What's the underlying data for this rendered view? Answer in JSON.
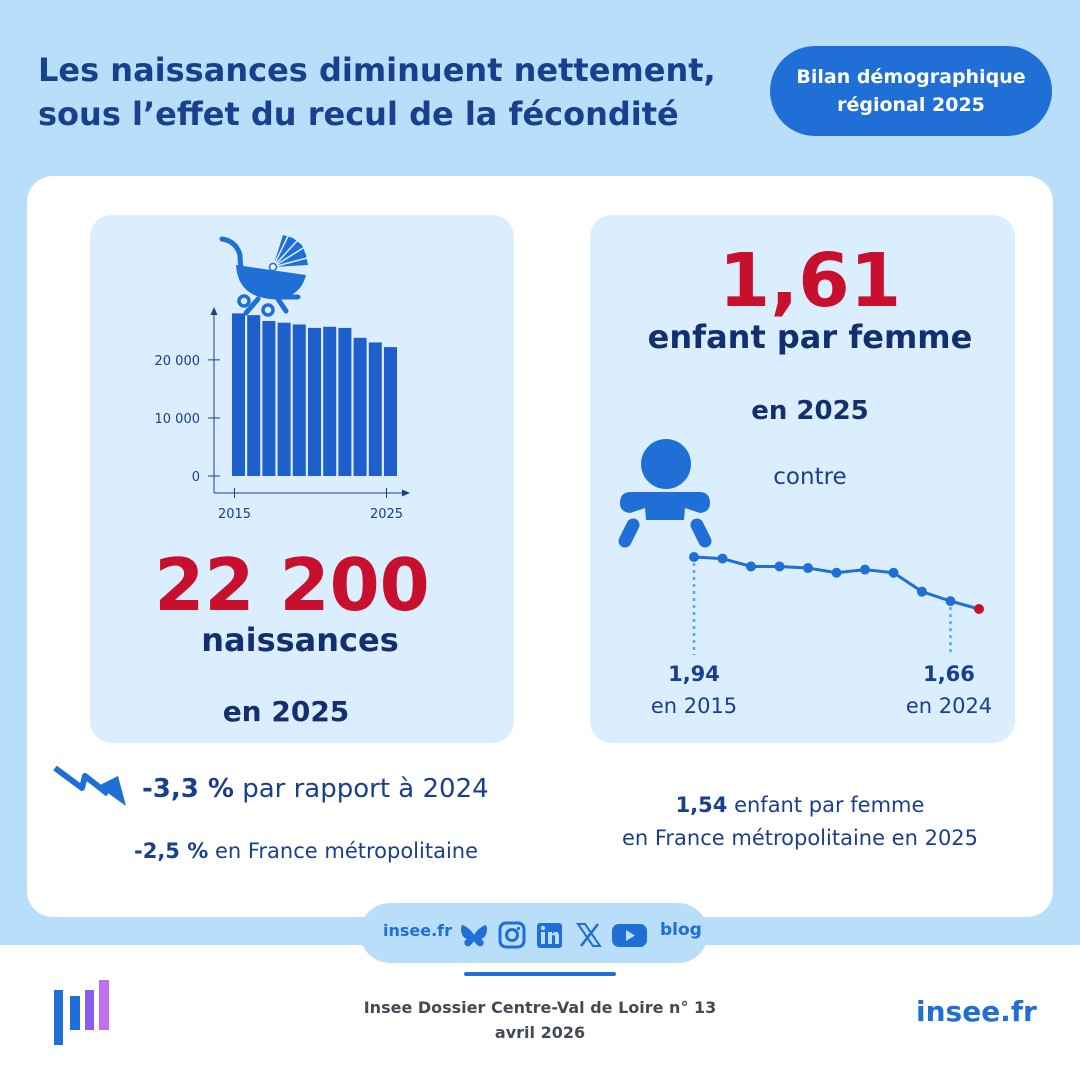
{
  "header": {
    "title_line1": "Les naissances diminuent nettement,",
    "title_line2": "sous l’effet du recul de la fécondité",
    "badge_line1": "Bilan démographique",
    "badge_line2": "régional 2025"
  },
  "births": {
    "value": "22 200",
    "label": "naissances",
    "year_label": "en 2025",
    "change_value": "-3,3 %",
    "change_text": " par rapport à 2024",
    "france_value": "-2,5 %",
    "france_text": " en France métropolitaine"
  },
  "fertility": {
    "value": "1,61",
    "label": "enfant par femme",
    "year_label": "en 2025",
    "contre": "contre",
    "start_value": "1,94",
    "start_year": "en 2015",
    "end_value": "1,66",
    "end_year": "en 2024",
    "france_value": "1,54",
    "france_text_1": " enfant par femme",
    "france_text_2": "en France métropolitaine en 2025"
  },
  "chart_data": [
    {
      "type": "bar",
      "categories": [
        "2015",
        "2016",
        "2017",
        "2018",
        "2019",
        "2020",
        "2021",
        "2022",
        "2023",
        "2024",
        "2025"
      ],
      "values": [
        28000,
        27700,
        26700,
        26400,
        26100,
        25500,
        25700,
        25500,
        23800,
        23000,
        22200
      ],
      "x_ticks": [
        "2015",
        "2025"
      ],
      "y_ticks": [
        "0",
        "10 000",
        "20 000"
      ],
      "ylim": [
        0,
        31000
      ]
    },
    {
      "type": "line",
      "x": [
        "2015",
        "2016",
        "2017",
        "2018",
        "2019",
        "2020",
        "2021",
        "2022",
        "2023",
        "2024",
        "2025"
      ],
      "values": [
        1.94,
        1.93,
        1.88,
        1.88,
        1.87,
        1.84,
        1.86,
        1.84,
        1.72,
        1.66,
        1.61
      ],
      "highlight_color": "#c8102e",
      "line_color": "#1f6fd6"
    }
  ],
  "social": {
    "site_label": "insee.fr",
    "blog_label": "blog"
  },
  "footer": {
    "line1": "Insee Dossier Centre-Val de Loire n° 13",
    "line2": "avril 2026",
    "site": "insee.fr"
  }
}
